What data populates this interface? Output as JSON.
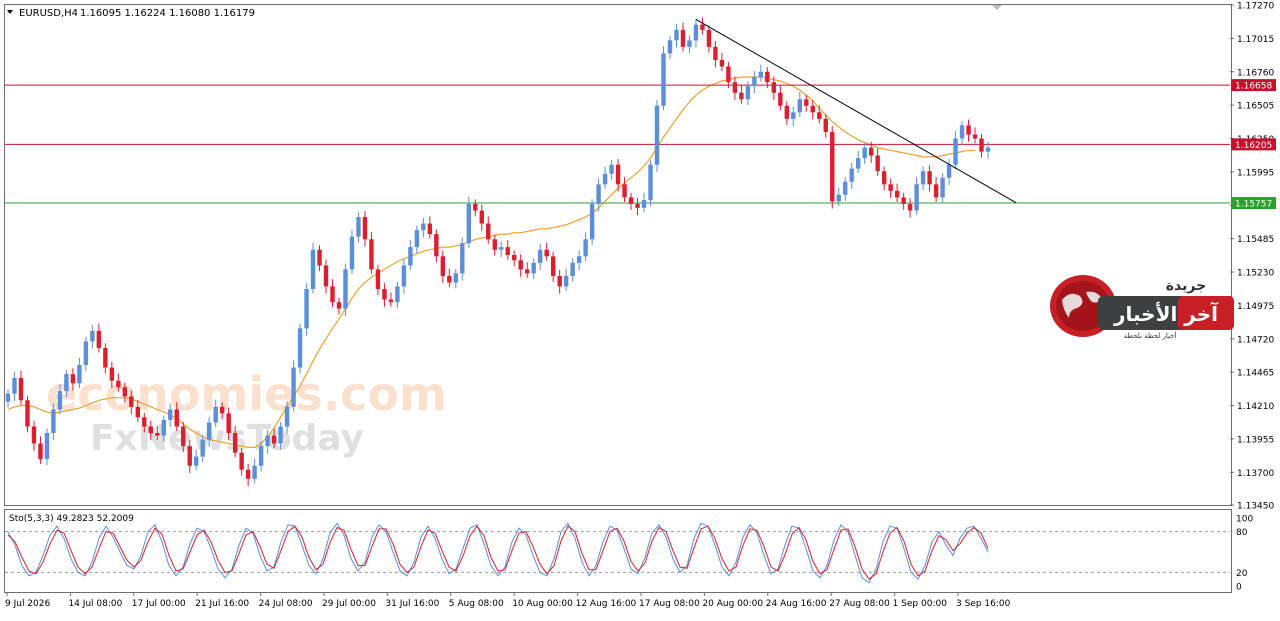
{
  "header": {
    "symbol": "EURUSD,H4",
    "ohlc": "1.16095 1.16224 1.16080 1.16179"
  },
  "watermark": {
    "line1": "economies.com",
    "line2": "FxNewsToday"
  },
  "logo": {
    "top_word": "جريدة",
    "name": "آخر الأخبار",
    "tagline": "أخبار لحظة بلحظة"
  },
  "colors": {
    "bull": "#5b8fd9",
    "bear": "#dd1e2f",
    "ma": "#f0a030",
    "resistance": "#c8102e",
    "support": "#2ca02c",
    "trendline": "#000000",
    "stoch_main": "#5b8fd9",
    "stoch_signal": "#dd1e2f"
  },
  "chart_data": {
    "type": "candlestick",
    "symbol": "EURUSD",
    "timeframe": "H4",
    "ylim": [
      1.1345,
      1.1727
    ],
    "price_ticks": [
      "1.17270",
      "1.17015",
      "1.16760",
      "1.16505",
      "1.16250",
      "1.15995",
      "1.15740",
      "1.15485",
      "1.15230",
      "1.14975",
      "1.14720",
      "1.14465",
      "1.14210",
      "1.13955",
      "1.13700",
      "1.13450"
    ],
    "x_labels": [
      "9 Jul 2026",
      "14 Jul 08:00",
      "17 Jul 00:00",
      "21 Jul 16:00",
      "24 Jul 08:00",
      "29 Jul 00:00",
      "31 Jul 16:00",
      "5 Aug 08:00",
      "10 Aug 00:00",
      "12 Aug 16:00",
      "17 Aug 08:00",
      "20 Aug 00:00",
      "24 Aug 16:00",
      "27 Aug 08:00",
      "1 Sep 00:00",
      "3 Sep 16:00"
    ],
    "horizontal_levels": [
      {
        "value": 1.16658,
        "label": "1.16658",
        "kind": "resistance"
      },
      {
        "value": 1.16205,
        "label": "1.16205",
        "kind": "resistance"
      },
      {
        "value": 1.15757,
        "label": "1.15757",
        "kind": "support"
      }
    ],
    "trendline": {
      "from": 1.1716,
      "to": 1.1576
    },
    "close_series": [
      1.143,
      1.1442,
      1.1425,
      1.1405,
      1.1392,
      1.138,
      1.14,
      1.1418,
      1.1432,
      1.1445,
      1.1438,
      1.1452,
      1.147,
      1.1478,
      1.1465,
      1.145,
      1.144,
      1.1435,
      1.1428,
      1.142,
      1.1412,
      1.1405,
      1.14,
      1.1398,
      1.141,
      1.1418,
      1.1405,
      1.139,
      1.1375,
      1.1382,
      1.1395,
      1.1408,
      1.142,
      1.1415,
      1.14,
      1.1385,
      1.1372,
      1.1365,
      1.1375,
      1.139,
      1.1398,
      1.1392,
      1.1405,
      1.142,
      1.145,
      1.148,
      1.151,
      1.154,
      1.1528,
      1.1512,
      1.15,
      1.1495,
      1.1525,
      1.155,
      1.1565,
      1.1548,
      1.1525,
      1.151,
      1.1502,
      1.15,
      1.1512,
      1.1528,
      1.1542,
      1.1555,
      1.156,
      1.1552,
      1.1535,
      1.152,
      1.1515,
      1.1522,
      1.1545,
      1.1575,
      1.157,
      1.156,
      1.1548,
      1.154,
      1.1542,
      1.1536,
      1.1532,
      1.1525,
      1.1522,
      1.153,
      1.154,
      1.1535,
      1.152,
      1.1512,
      1.152,
      1.153,
      1.1535,
      1.1548,
      1.1575,
      1.159,
      1.1598,
      1.1605,
      1.159,
      1.158,
      1.1575,
      1.1572,
      1.1578,
      1.1605,
      1.165,
      1.169,
      1.17,
      1.1708,
      1.1695,
      1.17,
      1.1712,
      1.1708,
      1.1695,
      1.1685,
      1.168,
      1.1668,
      1.166,
      1.1655,
      1.1665,
      1.1672,
      1.1676,
      1.1668,
      1.166,
      1.165,
      1.164,
      1.1645,
      1.1655,
      1.165,
      1.1645,
      1.164,
      1.163,
      1.1577,
      1.1582,
      1.1592,
      1.1602,
      1.161,
      1.1618,
      1.1612,
      1.16,
      1.159,
      1.1585,
      1.158,
      1.1575,
      1.157,
      1.159,
      1.16,
      1.159,
      1.158,
      1.1595,
      1.1605,
      1.1625,
      1.1635,
      1.1628,
      1.1625,
      1.1615,
      1.1618
    ],
    "ma_series": [
      1.1418,
      1.142,
      1.1421,
      1.1421,
      1.142,
      1.1418,
      1.1416,
      1.1415,
      1.1416,
      1.1417,
      1.1418,
      1.1419,
      1.1421,
      1.1423,
      1.1425,
      1.1426,
      1.1427,
      1.1427,
      1.1427,
      1.1426,
      1.1424,
      1.1422,
      1.142,
      1.1418,
      1.1416,
      1.1414,
      1.1411,
      1.1407,
      1.1403,
      1.14,
      1.1397,
      1.1395,
      1.1394,
      1.1393,
      1.1392,
      1.1391,
      1.139,
      1.1389,
      1.1389,
      1.1392,
      1.1397,
      1.1404,
      1.1412,
      1.142,
      1.1428,
      1.1436,
      1.1445,
      1.1455,
      1.1464,
      1.1472,
      1.148,
      1.1487,
      1.1495,
      1.1503,
      1.151,
      1.1515,
      1.1519,
      1.1522,
      1.1525,
      1.1528,
      1.1531,
      1.1533,
      1.1535,
      1.1537,
      1.1539,
      1.154,
      1.1541,
      1.1542,
      1.1542,
      1.1543,
      1.1544,
      1.1546,
      1.1548,
      1.1549,
      1.155,
      1.1551,
      1.1552,
      1.1552,
      1.1553,
      1.1553,
      1.1554,
      1.1555,
      1.1556,
      1.1556,
      1.1557,
      1.1558,
      1.1559,
      1.1561,
      1.1563,
      1.1565,
      1.1568,
      1.1572,
      1.1577,
      1.1582,
      1.1587,
      1.1591,
      1.1595,
      1.1599,
      1.1604,
      1.161,
      1.1618,
      1.1626,
      1.1633,
      1.164,
      1.1647,
      1.1653,
      1.1658,
      1.1662,
      1.1665,
      1.1667,
      1.1669,
      1.167,
      1.1671,
      1.1672,
      1.1672,
      1.1672,
      1.1672,
      1.1671,
      1.167,
      1.1669,
      1.1667,
      1.1665,
      1.1662,
      1.1658,
      1.1654,
      1.1648,
      1.1643,
      1.1638,
      1.1634,
      1.163,
      1.1627,
      1.1624,
      1.1622,
      1.162,
      1.1618,
      1.1617,
      1.1616,
      1.1615,
      1.1614,
      1.1613,
      1.1612,
      1.1611,
      1.1611,
      1.1611,
      1.1612,
      1.1613,
      1.1614,
      1.1615,
      1.1616,
      1.1616
    ],
    "stochastic": {
      "label": "Sto(5,3,3) 49.2823 52.2009",
      "ticks": [
        "100",
        "80",
        "20",
        "0"
      ],
      "levels": [
        80,
        20
      ],
      "ylim": [
        0,
        100
      ],
      "main": [
        80,
        60,
        30,
        15,
        20,
        45,
        75,
        88,
        70,
        40,
        20,
        15,
        35,
        70,
        88,
        72,
        50,
        30,
        25,
        45,
        80,
        90,
        65,
        30,
        15,
        28,
        62,
        85,
        80,
        55,
        25,
        12,
        25,
        60,
        85,
        78,
        45,
        22,
        28,
        65,
        90,
        88,
        60,
        30,
        18,
        40,
        78,
        92,
        75,
        40,
        22,
        35,
        72,
        90,
        80,
        50,
        22,
        15,
        35,
        72,
        88,
        70,
        40,
        18,
        25,
        55,
        85,
        90,
        62,
        30,
        15,
        28,
        65,
        85,
        75,
        45,
        20,
        15,
        40,
        80,
        92,
        70,
        35,
        15,
        30,
        65,
        88,
        82,
        55,
        25,
        18,
        42,
        78,
        90,
        72,
        40,
        20,
        30,
        70,
        92,
        88,
        60,
        28,
        15,
        35,
        72,
        90,
        78,
        45,
        18,
        25,
        60,
        88,
        85,
        55,
        22,
        12,
        30,
        68,
        90,
        80,
        45,
        12,
        5,
        25,
        65,
        88,
        85,
        55,
        20,
        10,
        30,
        65,
        80,
        60,
        45,
        70,
        85,
        88,
        70,
        50
      ],
      "signal": [
        75,
        65,
        42,
        22,
        18,
        35,
        62,
        82,
        78,
        52,
        28,
        18,
        28,
        55,
        80,
        78,
        58,
        38,
        28,
        38,
        65,
        85,
        76,
        45,
        22,
        25,
        50,
        75,
        82,
        65,
        38,
        20,
        22,
        48,
        75,
        80,
        58,
        32,
        26,
        52,
        80,
        88,
        72,
        42,
        24,
        32,
        64,
        86,
        82,
        54,
        30,
        30,
        58,
        84,
        84,
        62,
        32,
        20,
        28,
        58,
        82,
        78,
        52,
        28,
        22,
        44,
        74,
        88,
        74,
        42,
        22,
        24,
        52,
        78,
        80,
        58,
        32,
        18,
        30,
        66,
        88,
        80,
        48,
        24,
        24,
        52,
        80,
        85,
        66,
        36,
        22,
        34,
        66,
        86,
        80,
        52,
        28,
        26,
        56,
        84,
        88,
        70,
        40,
        22,
        28,
        60,
        84,
        82,
        58,
        28,
        22,
        46,
        76,
        86,
        68,
        36,
        18,
        24,
        54,
        82,
        84,
        58,
        25,
        10,
        18,
        50,
        78,
        86,
        66,
        32,
        15,
        22,
        52,
        74,
        68,
        52,
        62,
        78,
        86,
        78,
        55
      ]
    }
  }
}
